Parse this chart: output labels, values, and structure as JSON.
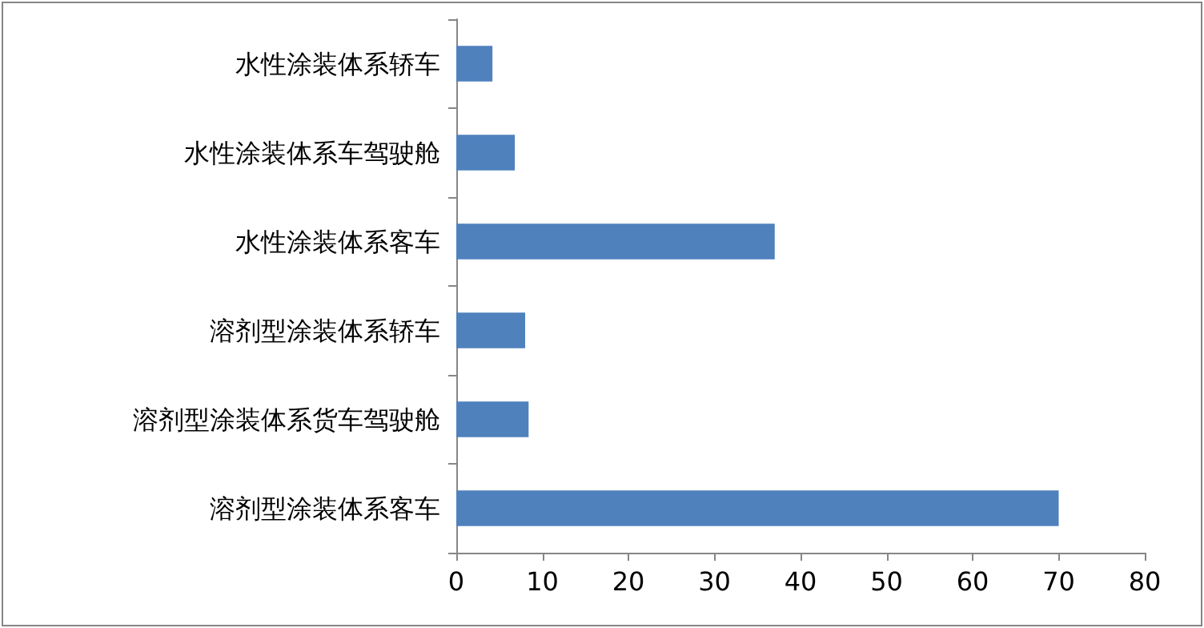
{
  "chart_data": {
    "type": "bar",
    "orientation": "horizontal",
    "categories": [
      "水性涂装体系轿车",
      "水性涂装体系车驾驶舱",
      "水性涂装体系客车",
      "溶剂型涂装体系轿车",
      "溶剂型涂装体系货车驾驶舱",
      "溶剂型涂装体系客车"
    ],
    "values": [
      4.2,
      6.8,
      37,
      8,
      8.4,
      70
    ],
    "color": "#4f81bd",
    "xlim": [
      0,
      80
    ],
    "xticks": [
      0,
      10,
      20,
      30,
      40,
      50,
      60,
      70,
      80
    ],
    "grid": false
  }
}
